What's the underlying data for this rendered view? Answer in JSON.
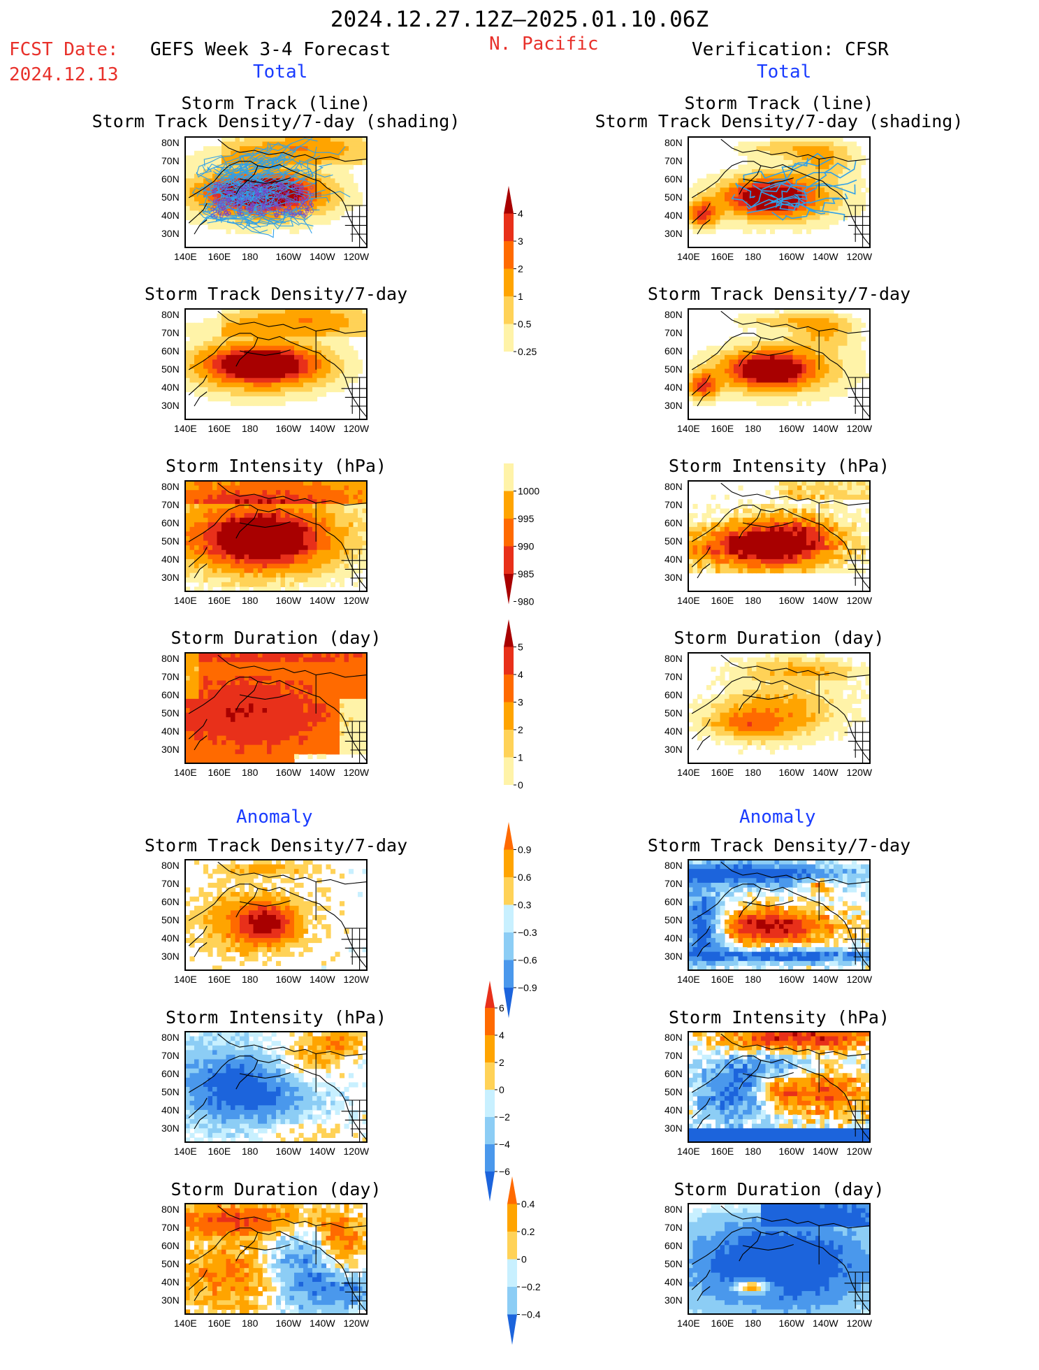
{
  "header": {
    "dates": "2024.12.27.12Z–2025.01.10.06Z",
    "fcst_label": "FCST Date:",
    "fcst_date": "2024.12.13",
    "model": "GEFS Week 3-4 Forecast",
    "region": "N. Pacific",
    "verification": "Verification: CFSR",
    "left_total": "Total",
    "right_total": "Total",
    "left_anomaly": "Anomaly",
    "right_anomaly": "Anomaly"
  },
  "titles": {
    "track_line": "Storm Track (line)",
    "track_shading": "Storm Track Density/7-day (shading)",
    "density": "Storm Track Density/7-day",
    "intensity": "Storm Intensity (hPa)",
    "duration": "Storm Duration (day)"
  },
  "colors": {
    "pale_yellow": "#fff3a8",
    "yellow_orange": "#ffd257",
    "orange": "#ffa400",
    "orange_red": "#ff6a00",
    "red": "#e8301a",
    "dark_red": "#a80000",
    "light_cyan": "#c8f0ff",
    "light_blue": "#8ccdf5",
    "mid_blue": "#4a98ec",
    "blue": "#1c64dc",
    "track_line": "#30a0e8"
  },
  "chart_data": [
    {
      "type": "heatmap",
      "id": "colorbar_density",
      "levels": [
        "0.25",
        "0.5",
        "1",
        "2",
        "3",
        "4"
      ],
      "colors": [
        "#fff3a8",
        "#ffd257",
        "#ffa400",
        "#ff6a00",
        "#e8301a",
        "#a80000"
      ],
      "xticks": [
        "140E",
        "160E",
        "180",
        "160W",
        "140W",
        "120W"
      ],
      "yticks": [
        "80N",
        "70N",
        "60N",
        "50N",
        "40N",
        "30N"
      ],
      "panels": [
        "GEFS total storm track density",
        "CFSR total storm track density"
      ]
    },
    {
      "type": "heatmap",
      "id": "colorbar_intensity",
      "levels": [
        "1000",
        "995",
        "990",
        "985",
        "980"
      ],
      "colors": [
        "#fff3a8",
        "#ffa400",
        "#ff6a00",
        "#e8301a",
        "#a80000"
      ]
    },
    {
      "type": "heatmap",
      "id": "colorbar_duration",
      "levels": [
        "0",
        "1",
        "2",
        "3",
        "4",
        "5"
      ],
      "colors": [
        "#fff3a8",
        "#ffd257",
        "#ffa400",
        "#ff6a00",
        "#e8301a",
        "#a80000"
      ]
    },
    {
      "type": "heatmap",
      "id": "colorbar_density_anom",
      "levels": [
        "0.9",
        "0.6",
        "0.3",
        "−0.3",
        "−0.6",
        "−0.9"
      ],
      "colors": [
        "#ff6a00",
        "#ffa400",
        "#ffd257",
        "#c8f0ff",
        "#8ccdf5",
        "#4a98ec",
        "#1c64dc"
      ]
    },
    {
      "type": "heatmap",
      "id": "colorbar_intensity_anom",
      "levels": [
        "6",
        "4",
        "2",
        "0",
        "−2",
        "−4",
        "−6"
      ],
      "colors": [
        "#e8301a",
        "#ff6a00",
        "#ffa400",
        "#ffd257",
        "#c8f0ff",
        "#8ccdf5",
        "#4a98ec",
        "#1c64dc"
      ]
    },
    {
      "type": "heatmap",
      "id": "colorbar_duration_anom",
      "levels": [
        "0.4",
        "0.2",
        "0",
        "−0.2",
        "−0.4"
      ],
      "colors": [
        "#ff6a00",
        "#ffa400",
        "#ffd257",
        "#c8f0ff",
        "#8ccdf5",
        "#1c64dc"
      ]
    }
  ]
}
